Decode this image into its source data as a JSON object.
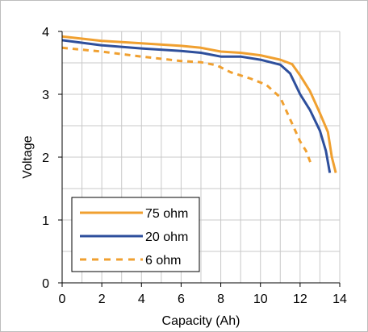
{
  "chart_data": {
    "type": "line",
    "xlabel": "Capacity (Ah)",
    "ylabel": "Voltage",
    "xlim": [
      0,
      14
    ],
    "ylim": [
      0,
      4
    ],
    "xticks": [
      "0",
      "2",
      "4",
      "6",
      "8",
      "10",
      "12",
      "14"
    ],
    "yticks": [
      "0",
      "1",
      "2",
      "3",
      "4"
    ],
    "grid": true,
    "legend_position": "bottom-left",
    "series": [
      {
        "name": "75 ohm",
        "color": "#f0a030",
        "dash": "solid",
        "points": [
          [
            0,
            3.92
          ],
          [
            2,
            3.85
          ],
          [
            4,
            3.81
          ],
          [
            6,
            3.77
          ],
          [
            7,
            3.74
          ],
          [
            8,
            3.68
          ],
          [
            9,
            3.66
          ],
          [
            10,
            3.62
          ],
          [
            11,
            3.55
          ],
          [
            11.6,
            3.48
          ],
          [
            12,
            3.3
          ],
          [
            12.5,
            3.05
          ],
          [
            13,
            2.7
          ],
          [
            13.4,
            2.4
          ],
          [
            13.6,
            2.0
          ],
          [
            13.8,
            1.75
          ]
        ]
      },
      {
        "name": "20 ohm",
        "color": "#2e4f9c",
        "dash": "solid",
        "points": [
          [
            0,
            3.86
          ],
          [
            2,
            3.78
          ],
          [
            4,
            3.73
          ],
          [
            6,
            3.69
          ],
          [
            7,
            3.66
          ],
          [
            8,
            3.6
          ],
          [
            9,
            3.6
          ],
          [
            10,
            3.55
          ],
          [
            11,
            3.47
          ],
          [
            11.5,
            3.33
          ],
          [
            12,
            3.0
          ],
          [
            12.5,
            2.75
          ],
          [
            13,
            2.42
          ],
          [
            13.3,
            2.1
          ],
          [
            13.5,
            1.75
          ]
        ]
      },
      {
        "name": "6 ohm",
        "color": "#f0a030",
        "dash": "dashed",
        "points": [
          [
            0,
            3.74
          ],
          [
            2,
            3.68
          ],
          [
            4,
            3.6
          ],
          [
            6,
            3.53
          ],
          [
            7,
            3.51
          ],
          [
            7.8,
            3.46
          ],
          [
            8.5,
            3.35
          ],
          [
            9.5,
            3.25
          ],
          [
            10.3,
            3.15
          ],
          [
            11,
            2.95
          ],
          [
            11.5,
            2.6
          ],
          [
            12,
            2.25
          ],
          [
            12.3,
            2.1
          ],
          [
            12.6,
            1.85
          ]
        ]
      }
    ]
  }
}
